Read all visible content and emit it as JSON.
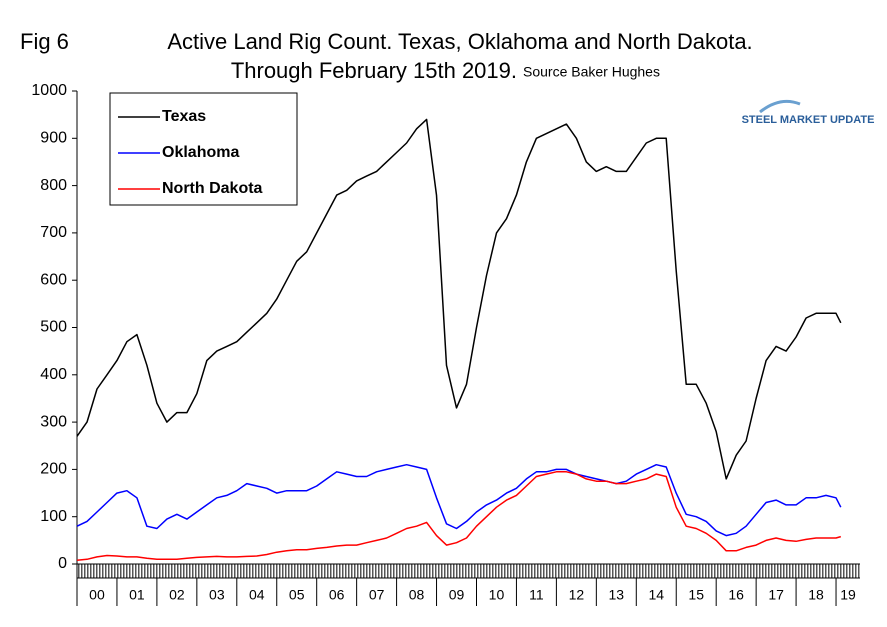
{
  "chart_data": {
    "type": "line",
    "fig_label": "Fig 6",
    "title": "Active Land Rig Count. Texas, Oklahoma and North Dakota.",
    "subtitle": "Through February 15th 2019.",
    "source": "Source Baker Hughes",
    "logo": "STEEL MARKET UPDATE",
    "x": [
      0,
      0.25,
      0.5,
      0.75,
      1,
      1.25,
      1.5,
      1.75,
      2,
      2.25,
      2.5,
      2.75,
      3,
      3.25,
      3.5,
      3.75,
      4,
      4.25,
      4.5,
      4.75,
      5,
      5.25,
      5.5,
      5.75,
      6,
      6.25,
      6.5,
      6.75,
      7,
      7.25,
      7.5,
      7.75,
      8,
      8.25,
      8.5,
      8.75,
      9,
      9.25,
      9.5,
      9.75,
      10,
      10.25,
      10.5,
      10.75,
      11,
      11.25,
      11.5,
      11.75,
      12,
      12.25,
      12.5,
      12.75,
      13,
      13.25,
      13.5,
      13.75,
      14,
      14.25,
      14.5,
      14.75,
      15,
      15.25,
      15.5,
      15.75,
      16,
      16.25,
      16.5,
      16.75,
      17,
      17.25,
      17.5,
      17.75,
      18,
      18.25,
      18.5,
      18.75,
      19,
      19.12
    ],
    "series": [
      {
        "name": "Texas",
        "color": "#000000",
        "values": [
          270,
          300,
          370,
          400,
          430,
          470,
          485,
          420,
          340,
          300,
          320,
          320,
          360,
          430,
          450,
          460,
          470,
          490,
          510,
          530,
          560,
          600,
          640,
          660,
          700,
          740,
          780,
          790,
          810,
          820,
          830,
          850,
          870,
          890,
          920,
          940,
          780,
          420,
          330,
          380,
          500,
          610,
          700,
          730,
          780,
          850,
          900,
          910,
          920,
          930,
          900,
          850,
          830,
          840,
          830,
          830,
          860,
          890,
          900,
          900,
          620,
          380,
          380,
          340,
          280,
          180,
          230,
          260,
          350,
          430,
          460,
          450,
          480,
          520,
          530,
          530,
          530,
          510
        ]
      },
      {
        "name": "Oklahoma",
        "color": "#0000ff",
        "values": [
          80,
          90,
          110,
          130,
          150,
          155,
          140,
          80,
          75,
          95,
          105,
          95,
          110,
          125,
          140,
          145,
          155,
          170,
          165,
          160,
          150,
          155,
          155,
          155,
          165,
          180,
          195,
          190,
          185,
          185,
          195,
          200,
          205,
          210,
          205,
          200,
          140,
          85,
          75,
          90,
          110,
          125,
          135,
          150,
          160,
          180,
          195,
          195,
          200,
          200,
          190,
          185,
          180,
          175,
          170,
          175,
          190,
          200,
          210,
          205,
          150,
          105,
          100,
          90,
          70,
          60,
          65,
          80,
          105,
          130,
          135,
          125,
          125,
          140,
          140,
          145,
          140,
          120
        ]
      },
      {
        "name": "North Dakota",
        "color": "#ff0000",
        "values": [
          8,
          10,
          15,
          18,
          17,
          15,
          15,
          12,
          10,
          10,
          10,
          12,
          14,
          15,
          16,
          15,
          15,
          16,
          17,
          20,
          25,
          28,
          30,
          30,
          33,
          35,
          38,
          40,
          40,
          45,
          50,
          55,
          65,
          75,
          80,
          88,
          60,
          40,
          45,
          55,
          80,
          100,
          120,
          135,
          145,
          165,
          185,
          190,
          195,
          195,
          190,
          180,
          175,
          175,
          170,
          170,
          175,
          180,
          190,
          185,
          120,
          80,
          75,
          65,
          50,
          28,
          28,
          35,
          40,
          50,
          55,
          50,
          48,
          52,
          55,
          55,
          55,
          58
        ]
      }
    ],
    "xlim": [
      0,
      19.6
    ],
    "xticks": [
      {
        "value": 0.5,
        "label": "00"
      },
      {
        "value": 1.5,
        "label": "01"
      },
      {
        "value": 2.5,
        "label": "02"
      },
      {
        "value": 3.5,
        "label": "03"
      },
      {
        "value": 4.5,
        "label": "04"
      },
      {
        "value": 5.5,
        "label": "05"
      },
      {
        "value": 6.5,
        "label": "06"
      },
      {
        "value": 7.5,
        "label": "07"
      },
      {
        "value": 8.5,
        "label": "08"
      },
      {
        "value": 9.5,
        "label": "09"
      },
      {
        "value": 10.5,
        "label": "10"
      },
      {
        "value": 11.5,
        "label": "11"
      },
      {
        "value": 12.5,
        "label": "12"
      },
      {
        "value": 13.5,
        "label": "13"
      },
      {
        "value": 14.5,
        "label": "14"
      },
      {
        "value": 15.5,
        "label": "15"
      },
      {
        "value": 16.5,
        "label": "16"
      },
      {
        "value": 17.5,
        "label": "17"
      },
      {
        "value": 18.5,
        "label": "18"
      },
      {
        "value": 19.3,
        "label": "19"
      }
    ],
    "ylim": [
      0,
      1000
    ],
    "yticks": [
      0,
      100,
      200,
      300,
      400,
      500,
      600,
      700,
      800,
      900,
      1000
    ],
    "grid": false
  }
}
